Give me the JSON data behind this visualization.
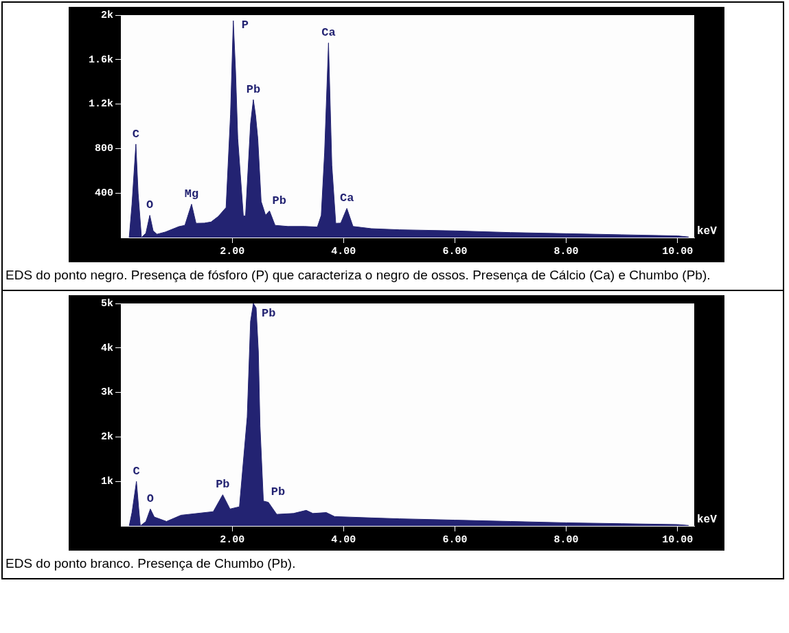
{
  "chart_data": [
    {
      "type": "area",
      "xlabel": "keV",
      "xlim": [
        0,
        10.3
      ],
      "ylim": [
        0,
        2000
      ],
      "xticks": [
        {
          "value": 2,
          "label": "2.00"
        },
        {
          "value": 4,
          "label": "4.00"
        },
        {
          "value": 6,
          "label": "6.00"
        },
        {
          "value": 8,
          "label": "8.00"
        },
        {
          "value": 10,
          "label": "10.00"
        }
      ],
      "yticks": [
        {
          "value": 400,
          "label": "400"
        },
        {
          "value": 800,
          "label": "800"
        },
        {
          "value": 1200,
          "label": "1.2k"
        },
        {
          "value": 1600,
          "label": "1.6k"
        },
        {
          "value": 2000,
          "label": "2k"
        }
      ],
      "series": [
        {
          "color": "#232372",
          "x": [
            0.15,
            0.2,
            0.27,
            0.31,
            0.37,
            0.45,
            0.52,
            0.58,
            0.65,
            0.8,
            1.04,
            1.15,
            1.27,
            1.35,
            1.5,
            1.62,
            1.75,
            1.89,
            1.97,
            2.02,
            2.06,
            2.1,
            2.2,
            2.24,
            2.33,
            2.38,
            2.42,
            2.46,
            2.52,
            2.6,
            2.67,
            2.77,
            3.0,
            3.3,
            3.53,
            3.6,
            3.66,
            3.73,
            3.79,
            3.86,
            3.95,
            4.06,
            4.17,
            4.5,
            5.0,
            6.0,
            7.0,
            8.0,
            9.0,
            10.0,
            10.2
          ],
          "values": [
            0,
            300,
            840,
            400,
            0,
            40,
            200,
            60,
            30,
            50,
            98,
            110,
            300,
            128,
            130,
            140,
            190,
            270,
            1110,
            1950,
            1500,
            890,
            195,
            195,
            1025,
            1240,
            1100,
            890,
            325,
            200,
            240,
            110,
            100,
            100,
            95,
            200,
            765,
            1750,
            650,
            128,
            130,
            262,
            100,
            80,
            70,
            60,
            45,
            35,
            25,
            15,
            5
          ]
        }
      ],
      "annotations": [
        {
          "text": "C",
          "x": 0.27,
          "y": 840
        },
        {
          "text": "O",
          "x": 0.52,
          "y": 200
        },
        {
          "text": "Mg",
          "x": 1.27,
          "y": 300
        },
        {
          "text": "P",
          "x": 2.02,
          "y": 1950
        },
        {
          "text": "Pb",
          "x": 2.38,
          "y": 1240
        },
        {
          "text": "Pb",
          "x": 2.67,
          "y": 240
        },
        {
          "text": "Ca",
          "x": 3.73,
          "y": 1750
        },
        {
          "text": "Ca",
          "x": 4.06,
          "y": 262
        },
        "EDS do ponto negro. Presença de fósforo (P) que caracteriza o negro de ossos. Presença de Cálcio (Ca) e Chumbo (Pb)."
      ]
    },
    {
      "type": "area",
      "xlabel": "keV",
      "xlim": [
        0,
        10.3
      ],
      "ylim": [
        0,
        5000
      ],
      "xticks": [
        {
          "value": 2,
          "label": "2.00"
        },
        {
          "value": 4,
          "label": "4.00"
        },
        {
          "value": 6,
          "label": "6.00"
        },
        {
          "value": 8,
          "label": "8.00"
        },
        {
          "value": 10,
          "label": "10.00"
        }
      ],
      "yticks": [
        {
          "value": 1000,
          "label": "1k"
        },
        {
          "value": 2000,
          "label": "2k"
        },
        {
          "value": 3000,
          "label": "3k"
        },
        {
          "value": 4000,
          "label": "4k"
        },
        {
          "value": 5000,
          "label": "5k"
        }
      ],
      "series": [
        {
          "color": "#232372",
          "x": [
            0.15,
            0.2,
            0.28,
            0.32,
            0.35,
            0.45,
            0.53,
            0.6,
            0.82,
            1.08,
            1.44,
            1.66,
            1.83,
            1.96,
            2.13,
            2.27,
            2.33,
            2.38,
            2.43,
            2.47,
            2.5,
            2.56,
            2.65,
            2.8,
            3.1,
            3.33,
            3.45,
            3.69,
            3.84,
            4.5,
            5.0,
            6.0,
            7.0,
            8.0,
            9.0,
            10.0,
            10.2
          ],
          "values": [
            0,
            300,
            1000,
            400,
            0,
            100,
            380,
            200,
            100,
            240,
            290,
            320,
            700,
            380,
            430,
            2450,
            4600,
            5000,
            4900,
            3920,
            2240,
            560,
            530,
            260,
            280,
            350,
            280,
            300,
            210,
            180,
            160,
            130,
            100,
            70,
            50,
            30,
            10
          ]
        }
      ],
      "annotations": [
        {
          "text": "C",
          "x": 0.28,
          "y": 1000
        },
        {
          "text": "O",
          "x": 0.53,
          "y": 380
        },
        {
          "text": "Pb",
          "x": 1.83,
          "y": 700
        },
        {
          "text": "Pb",
          "x": 2.38,
          "y": 5000
        },
        {
          "text": "Pb",
          "x": 2.65,
          "y": 530
        },
        "EDS do ponto branco. Presença de Chumbo (Pb)."
      ]
    }
  ]
}
